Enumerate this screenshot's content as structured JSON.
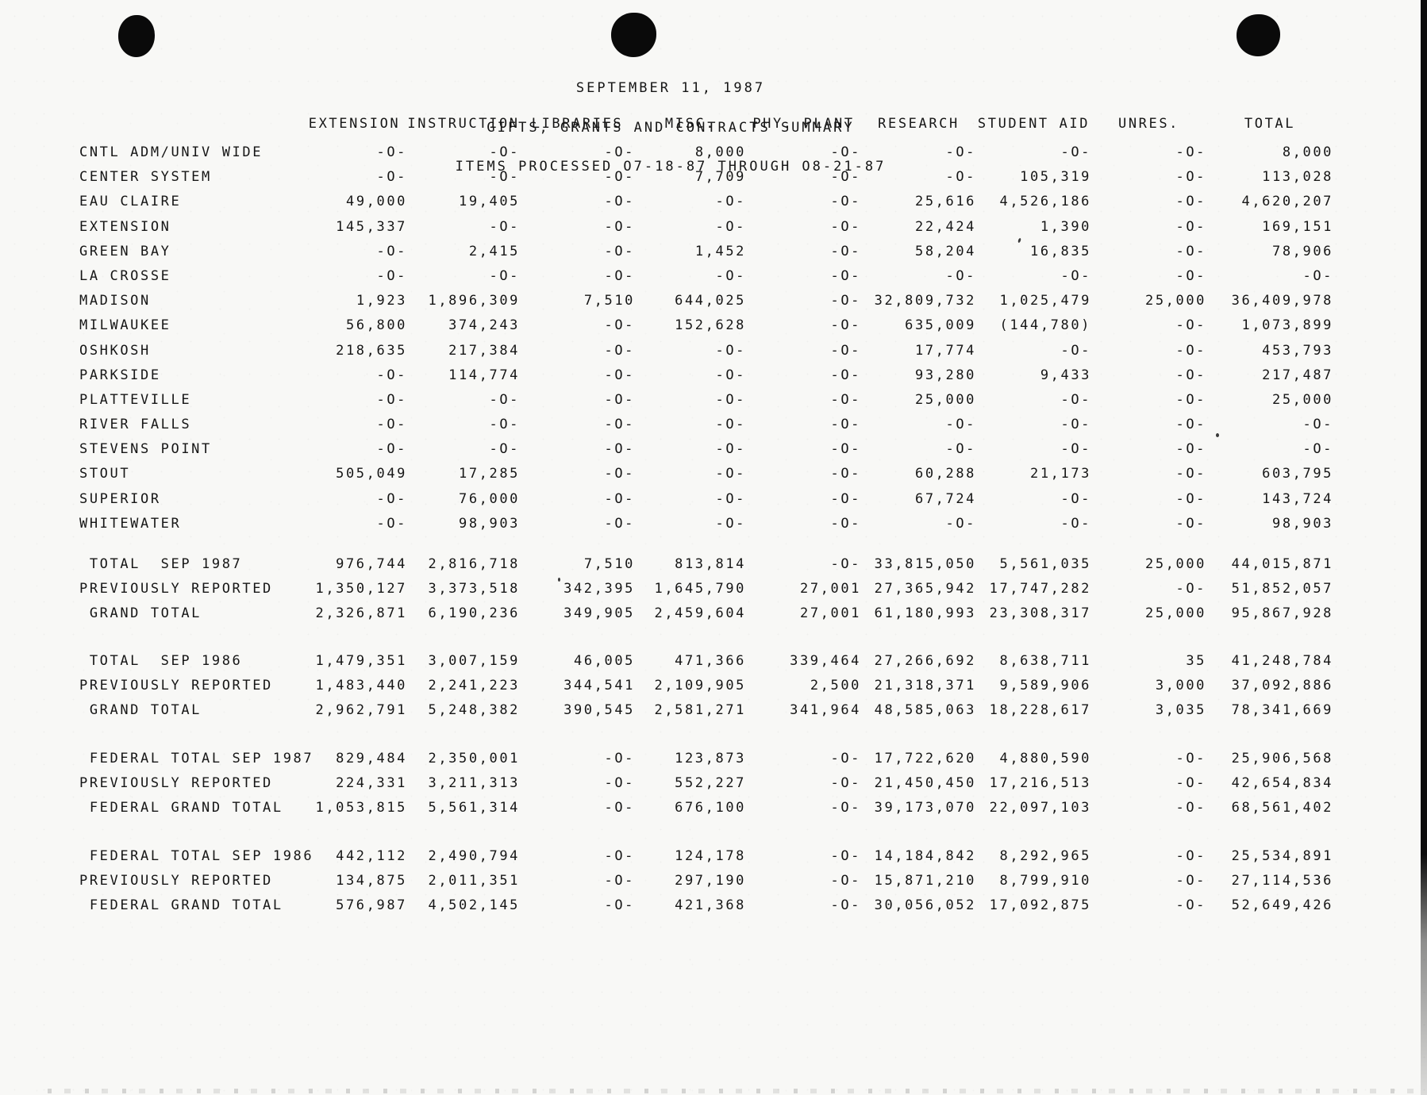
{
  "doc": {
    "title_lines": [
      "SEPTEMBER 11, 1987",
      "GIFTS, GRANTS AND CONTRACTS SUMMARY",
      "ITEMS PROCESSED O7-18-87 THROUGH O8-21-87"
    ]
  },
  "table": {
    "columns": [
      "EXTENSION",
      "INSTRUCTION",
      "LIBRARIES",
      "MISC.",
      "PHY. PLANT",
      "RESEARCH",
      "STUDENT AID",
      "UNRES.",
      "TOTAL"
    ],
    "campus_rows": [
      {
        "label": "CNTL ADM/UNIV WIDE",
        "values": [
          "-O-",
          "-O-",
          "-O-",
          "8,000",
          "-O-",
          "-O-",
          "-O-",
          "-O-",
          "8,000"
        ]
      },
      {
        "label": "CENTER SYSTEM",
        "values": [
          "-O-",
          "-O-",
          "-O-",
          "7,709",
          "-O-",
          "-O-",
          "105,319",
          "-O-",
          "113,028"
        ]
      },
      {
        "label": "EAU CLAIRE",
        "values": [
          "49,000",
          "19,405",
          "-O-",
          "-O-",
          "-O-",
          "25,616",
          "4,526,186",
          "-O-",
          "4,620,207"
        ]
      },
      {
        "label": "EXTENSION",
        "values": [
          "145,337",
          "-O-",
          "-O-",
          "-O-",
          "-O-",
          "22,424",
          "1,390",
          "-O-",
          "169,151"
        ]
      },
      {
        "label": "GREEN BAY",
        "values": [
          "-O-",
          "2,415",
          "-O-",
          "1,452",
          "-O-",
          "58,204",
          "16,835",
          "-O-",
          "78,906"
        ]
      },
      {
        "label": "LA CROSSE",
        "values": [
          "-O-",
          "-O-",
          "-O-",
          "-O-",
          "-O-",
          "-O-",
          "-O-",
          "-O-",
          "-O-"
        ]
      },
      {
        "label": "MADISON",
        "values": [
          "1,923",
          "1,896,309",
          "7,510",
          "644,025",
          "-O-",
          "32,809,732",
          "1,025,479",
          "25,000",
          "36,409,978"
        ]
      },
      {
        "label": "MILWAUKEE",
        "values": [
          "56,800",
          "374,243",
          "-O-",
          "152,628",
          "-O-",
          "635,009",
          "(144,780)",
          "-O-",
          "1,073,899"
        ]
      },
      {
        "label": "OSHKOSH",
        "values": [
          "218,635",
          "217,384",
          "-O-",
          "-O-",
          "-O-",
          "17,774",
          "-O-",
          "-O-",
          "453,793"
        ]
      },
      {
        "label": "PARKSIDE",
        "values": [
          "-O-",
          "114,774",
          "-O-",
          "-O-",
          "-O-",
          "93,280",
          "9,433",
          "-O-",
          "217,487"
        ]
      },
      {
        "label": "PLATTEVILLE",
        "values": [
          "-O-",
          "-O-",
          "-O-",
          "-O-",
          "-O-",
          "25,000",
          "-O-",
          "-O-",
          "25,000"
        ]
      },
      {
        "label": "RIVER FALLS",
        "values": [
          "-O-",
          "-O-",
          "-O-",
          "-O-",
          "-O-",
          "-O-",
          "-O-",
          "-O-",
          "-O-"
        ]
      },
      {
        "label": "STEVENS POINT",
        "values": [
          "-O-",
          "-O-",
          "-O-",
          "-O-",
          "-O-",
          "-O-",
          "-O-",
          "-O-",
          "-O-"
        ]
      },
      {
        "label": "STOUT",
        "values": [
          "505,049",
          "17,285",
          "-O-",
          "-O-",
          "-O-",
          "60,288",
          "21,173",
          "-O-",
          "603,795"
        ]
      },
      {
        "label": "SUPERIOR",
        "values": [
          "-O-",
          "76,000",
          "-O-",
          "-O-",
          "-O-",
          "67,724",
          "-O-",
          "-O-",
          "143,724"
        ]
      },
      {
        "label": "WHITEWATER",
        "values": [
          "-O-",
          "98,903",
          "-O-",
          "-O-",
          "-O-",
          "-O-",
          "-O-",
          "-O-",
          "98,903"
        ]
      }
    ],
    "summary_groups": [
      {
        "rows": [
          {
            "label": " TOTAL  SEP 1987",
            "values": [
              "976,744",
              "2,816,718",
              "7,510",
              "813,814",
              "-O-",
              "33,815,050",
              "5,561,035",
              "25,000",
              "44,015,871"
            ]
          },
          {
            "label": "PREVIOUSLY REPORTED",
            "values": [
              "1,350,127",
              "3,373,518",
              "342,395",
              "1,645,790",
              "27,001",
              "27,365,942",
              "17,747,282",
              "-O-",
              "51,852,057"
            ]
          },
          {
            "label": " GRAND TOTAL",
            "values": [
              "2,326,871",
              "6,190,236",
              "349,905",
              "2,459,604",
              "27,001",
              "61,180,993",
              "23,308,317",
              "25,000",
              "95,867,928"
            ]
          }
        ]
      },
      {
        "rows": [
          {
            "label": " TOTAL  SEP 1986",
            "values": [
              "1,479,351",
              "3,007,159",
              "46,005",
              "471,366",
              "339,464",
              "27,266,692",
              "8,638,711",
              "35",
              "41,248,784"
            ]
          },
          {
            "label": "PREVIOUSLY REPORTED",
            "values": [
              "1,483,440",
              "2,241,223",
              "344,541",
              "2,109,905",
              "2,500",
              "21,318,371",
              "9,589,906",
              "3,000",
              "37,092,886"
            ]
          },
          {
            "label": " GRAND TOTAL",
            "values": [
              "2,962,791",
              "5,248,382",
              "390,545",
              "2,581,271",
              "341,964",
              "48,585,063",
              "18,228,617",
              "3,035",
              "78,341,669"
            ]
          }
        ]
      },
      {
        "rows": [
          {
            "label": " FEDERAL TOTAL SEP 1987",
            "values": [
              "829,484",
              "2,350,001",
              "-O-",
              "123,873",
              "-O-",
              "17,722,620",
              "4,880,590",
              "-O-",
              "25,906,568"
            ]
          },
          {
            "label": "PREVIOUSLY REPORTED",
            "values": [
              "224,331",
              "3,211,313",
              "-O-",
              "552,227",
              "-O-",
              "21,450,450",
              "17,216,513",
              "-O-",
              "42,654,834"
            ]
          },
          {
            "label": " FEDERAL GRAND TOTAL",
            "values": [
              "1,053,815",
              "5,561,314",
              "-O-",
              "676,100",
              "-O-",
              "39,173,070",
              "22,097,103",
              "-O-",
              "68,561,402"
            ]
          }
        ]
      },
      {
        "rows": [
          {
            "label": " FEDERAL TOTAL SEP 1986",
            "values": [
              "442,112",
              "2,490,794",
              "-O-",
              "124,178",
              "-O-",
              "14,184,842",
              "8,292,965",
              "-O-",
              "25,534,891"
            ]
          },
          {
            "label": "PREVIOUSLY REPORTED",
            "values": [
              "134,875",
              "2,011,351",
              "-O-",
              "297,190",
              "-O-",
              "15,871,210",
              "8,799,910",
              "-O-",
              "27,114,536"
            ]
          },
          {
            "label": " FEDERAL GRAND TOTAL",
            "values": [
              "576,987",
              "4,502,145",
              "-O-",
              "421,368",
              "-O-",
              "30,056,052",
              "17,092,875",
              "-O-",
              "52,649,426"
            ]
          }
        ]
      }
    ]
  }
}
